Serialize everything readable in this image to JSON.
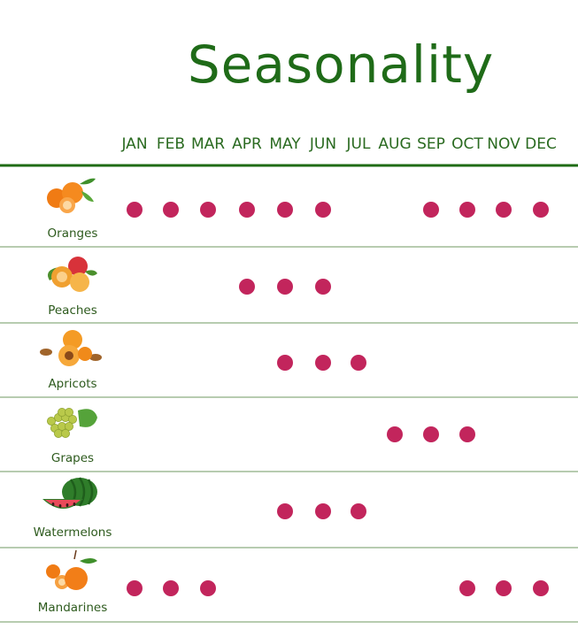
{
  "chart_data": {
    "type": "dot-matrix",
    "title": "Seasonality",
    "months": [
      "JAN",
      "FEB",
      "MAR",
      "APR",
      "MAY",
      "JUN",
      "JUL",
      "AUG",
      "SEP",
      "OCT",
      "NOV",
      "DEC"
    ],
    "rows": [
      {
        "label": "Oranges",
        "icon": "orange-fruit-icon",
        "months": [
          "JAN",
          "FEB",
          "MAR",
          "APR",
          "MAY",
          "JUN",
          "SEP",
          "OCT",
          "NOV",
          "DEC"
        ]
      },
      {
        "label": "Peaches",
        "icon": "peach-fruit-icon",
        "months": [
          "APR",
          "MAY",
          "JUN"
        ]
      },
      {
        "label": "Apricots",
        "icon": "apricot-fruit-icon",
        "months": [
          "MAY",
          "JUN",
          "JUL"
        ]
      },
      {
        "label": "Grapes",
        "icon": "grapes-fruit-icon",
        "months": [
          "AUG",
          "SEP",
          "OCT"
        ]
      },
      {
        "label": "Watermelons",
        "icon": "watermelon-fruit-icon",
        "months": [
          "MAY",
          "JUN",
          "JUL"
        ]
      },
      {
        "label": "Mandarines",
        "icon": "mandarin-fruit-icon",
        "months": [
          "JAN",
          "FEB",
          "MAR",
          "OCT",
          "NOV",
          "DEC"
        ]
      }
    ],
    "colors": {
      "title": "#1f6b18",
      "month_label": "#2a6a20",
      "header_rule": "#1e6b14",
      "row_divider": "#6f9a62",
      "dot": "#c2255c",
      "row_label": "#2d5a1d"
    }
  }
}
